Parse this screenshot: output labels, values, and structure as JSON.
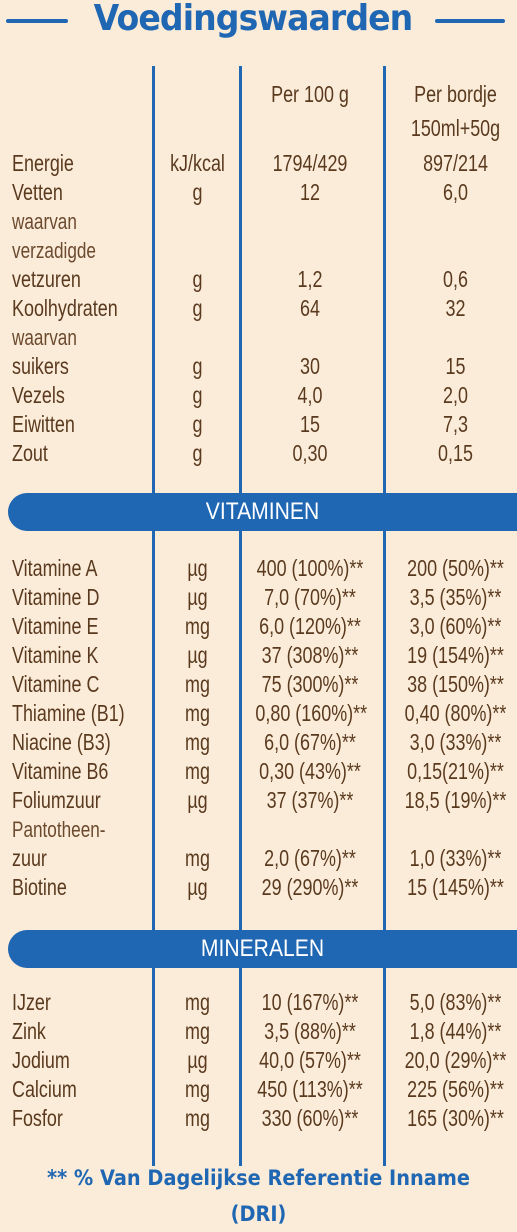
{
  "title": "Voedingswaarden",
  "columns": {
    "per100": "Per 100 g",
    "perbordje_1": "Per bordje",
    "perbordje_2": "150ml+50g"
  },
  "nutrients": [
    {
      "name": "Energie",
      "unit": "kJ/kcal",
      "v1": "1794/429",
      "v2": "897/214"
    },
    {
      "name": "Vetten",
      "unit": "g",
      "v1": "12",
      "v2": "6,0"
    },
    {
      "name": "waarvan",
      "unit": "",
      "v1": "",
      "v2": ""
    },
    {
      "name": "verzadigde",
      "unit": "",
      "v1": "",
      "v2": ""
    },
    {
      "name": "vetzuren",
      "unit": "g",
      "v1": "1,2",
      "v2": "0,6"
    },
    {
      "name": "Koolhydraten",
      "unit": "g",
      "v1": "64",
      "v2": "32"
    },
    {
      "name": "waarvan",
      "unit": "",
      "v1": "",
      "v2": ""
    },
    {
      "name": "suikers",
      "unit": "g",
      "v1": "30",
      "v2": "15"
    },
    {
      "name": "Vezels",
      "unit": "g",
      "v1": "4,0",
      "v2": "2,0"
    },
    {
      "name": "Eiwitten",
      "unit": "g",
      "v1": "15",
      "v2": "7,3"
    },
    {
      "name": "Zout",
      "unit": "g",
      "v1": "0,30",
      "v2": "0,15"
    }
  ],
  "vitamins_label": "VITAMINEN",
  "vitamins": [
    {
      "name": "Vitamine A",
      "unit": "µg",
      "v1": "400 (100%)**",
      "v2": "200 (50%)**"
    },
    {
      "name": "Vitamine D",
      "unit": "µg",
      "v1": "7,0 (70%)**",
      "v2": "3,5 (35%)**"
    },
    {
      "name": "Vitamine E",
      "unit": "mg",
      "v1": "6,0 (120%)**",
      "v2": "3,0 (60%)**"
    },
    {
      "name": "Vitamine K",
      "unit": "µg",
      "v1": "37 (308%)**",
      "v2": "19 (154%)**"
    },
    {
      "name": "Vitamine C",
      "unit": "mg",
      "v1": "75 (300%)**",
      "v2": "38 (150%)**"
    },
    {
      "name": "Thiamine (B1)",
      "unit": "mg",
      "v1": "0,80 (160%)**",
      "v2": "0,40 (80%)**"
    },
    {
      "name": "Niacine (B3)",
      "unit": "mg",
      "v1": "6,0 (67%)**",
      "v2": "3,0 (33%)**"
    },
    {
      "name": "Vitamine B6",
      "unit": "mg",
      "v1": "0,30 (43%)**",
      "v2": "0,15(21%)**"
    },
    {
      "name": "Foliumzuur",
      "unit": "µg",
      "v1": "37 (37%)**",
      "v2": "18,5 (19%)**"
    },
    {
      "name": "Pantotheen-",
      "unit": "",
      "v1": "",
      "v2": ""
    },
    {
      "name": "zuur",
      "unit": "mg",
      "v1": "2,0 (67%)**",
      "v2": "1,0 (33%)**"
    },
    {
      "name": "Biotine",
      "unit": "µg",
      "v1": "29 (290%)**",
      "v2": "15 (145%)**"
    }
  ],
  "minerals_label": "MINERALEN",
  "minerals": [
    {
      "name": "IJzer",
      "unit": "mg",
      "v1": "10 (167%)**",
      "v2": "5,0 (83%)**"
    },
    {
      "name": "Zink",
      "unit": "mg",
      "v1": "3,5 (88%)**",
      "v2": "1,8 (44%)**"
    },
    {
      "name": "Jodium",
      "unit": "µg",
      "v1": "40,0 (57%)**",
      "v2": "20,0 (29%)**"
    },
    {
      "name": "Calcium",
      "unit": "mg",
      "v1": "450 (113%)**",
      "v2": "225 (56%)**"
    },
    {
      "name": "Fosfor",
      "unit": "mg",
      "v1": "330 (60%)**",
      "v2": "165 (30%)**"
    }
  ],
  "footnote": "** % Van Dagelijkse Referentie Inname (DRI)",
  "colors": {
    "brand_blue": "#1f66b3",
    "text_brown": "#5a3a1f",
    "background": "#fbecd9"
  }
}
